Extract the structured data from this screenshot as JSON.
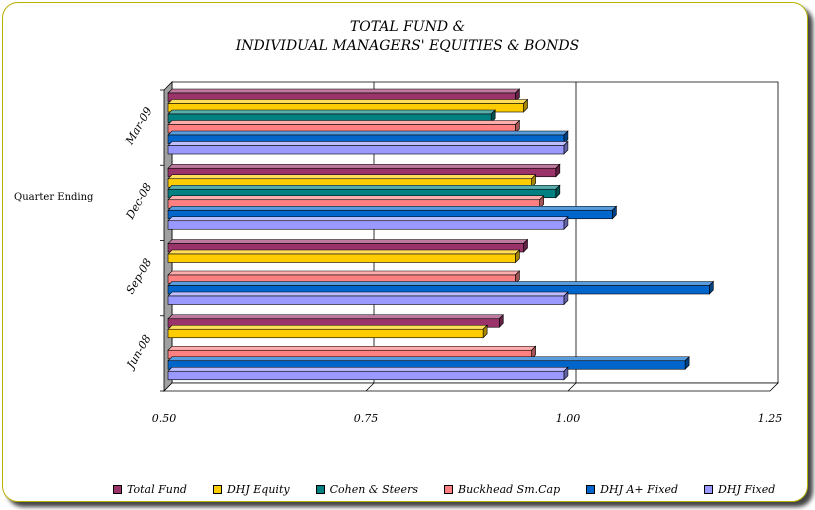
{
  "chart_data": {
    "type": "bar",
    "orientation": "horizontal",
    "title_lines": [
      "TOTAL FUND &",
      "INDIVIDUAL MANAGERS' EQUITIES & BONDS"
    ],
    "ylabel": "Quarter Ending",
    "xlabel": "",
    "xlim": [
      0.5,
      1.25
    ],
    "xticks": [
      "0.50",
      "0.75",
      "1.00",
      "1.25"
    ],
    "grid": "vertical",
    "legend_position": "bottom",
    "categories": [
      "Mar-09",
      "Dec-08",
      "Sep-08",
      "Jun-08"
    ],
    "series": [
      {
        "name": "Total Fund",
        "color": "#99336a",
        "values": [
          0.93,
          0.98,
          0.94,
          0.91
        ]
      },
      {
        "name": "DHJ Equity",
        "color": "#ffcc00",
        "values": [
          0.94,
          0.95,
          0.93,
          0.89
        ]
      },
      {
        "name": "Cohen & Steers",
        "color": "#008080",
        "values": [
          0.9,
          0.98,
          null,
          null
        ]
      },
      {
        "name": "Buckhead Sm.Cap",
        "color": "#ff8080",
        "values": [
          0.93,
          0.96,
          0.93,
          0.95
        ]
      },
      {
        "name": "DHJ A+ Fixed",
        "color": "#0066cc",
        "values": [
          0.99,
          1.05,
          1.17,
          1.14
        ]
      },
      {
        "name": "DHJ Fixed",
        "color": "#9999ff",
        "values": [
          0.99,
          0.99,
          0.99,
          0.99
        ]
      }
    ]
  }
}
